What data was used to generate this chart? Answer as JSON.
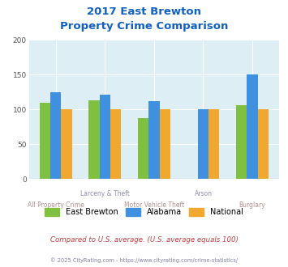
{
  "title_line1": "2017 East Brewton",
  "title_line2": "Property Crime Comparison",
  "categories": [
    "All Property Crime",
    "Larceny & Theft",
    "Motor Vehicle Theft",
    "Arson",
    "Burglary"
  ],
  "east_brewton": [
    110,
    113,
    87,
    0,
    106
  ],
  "alabama": [
    125,
    121,
    112,
    100,
    151
  ],
  "national": [
    100,
    100,
    100,
    100,
    100
  ],
  "color_east_brewton": "#80c040",
  "color_alabama": "#4090e0",
  "color_national": "#f0a830",
  "ylim": [
    0,
    200
  ],
  "yticks": [
    0,
    50,
    100,
    150,
    200
  ],
  "background_color": "#ddeef5",
  "title_color": "#1060c0",
  "label_color_row1": "#9090b0",
  "label_color_row2": "#b09090",
  "subtitle_text": "Compared to U.S. average. (U.S. average equals 100)",
  "subtitle_color": "#c04040",
  "footer_text": "© 2025 CityRating.com - https://www.cityrating.com/crime-statistics/",
  "footer_color": "#8080a0",
  "legend_labels": [
    "East Brewton",
    "Alabama",
    "National"
  ]
}
